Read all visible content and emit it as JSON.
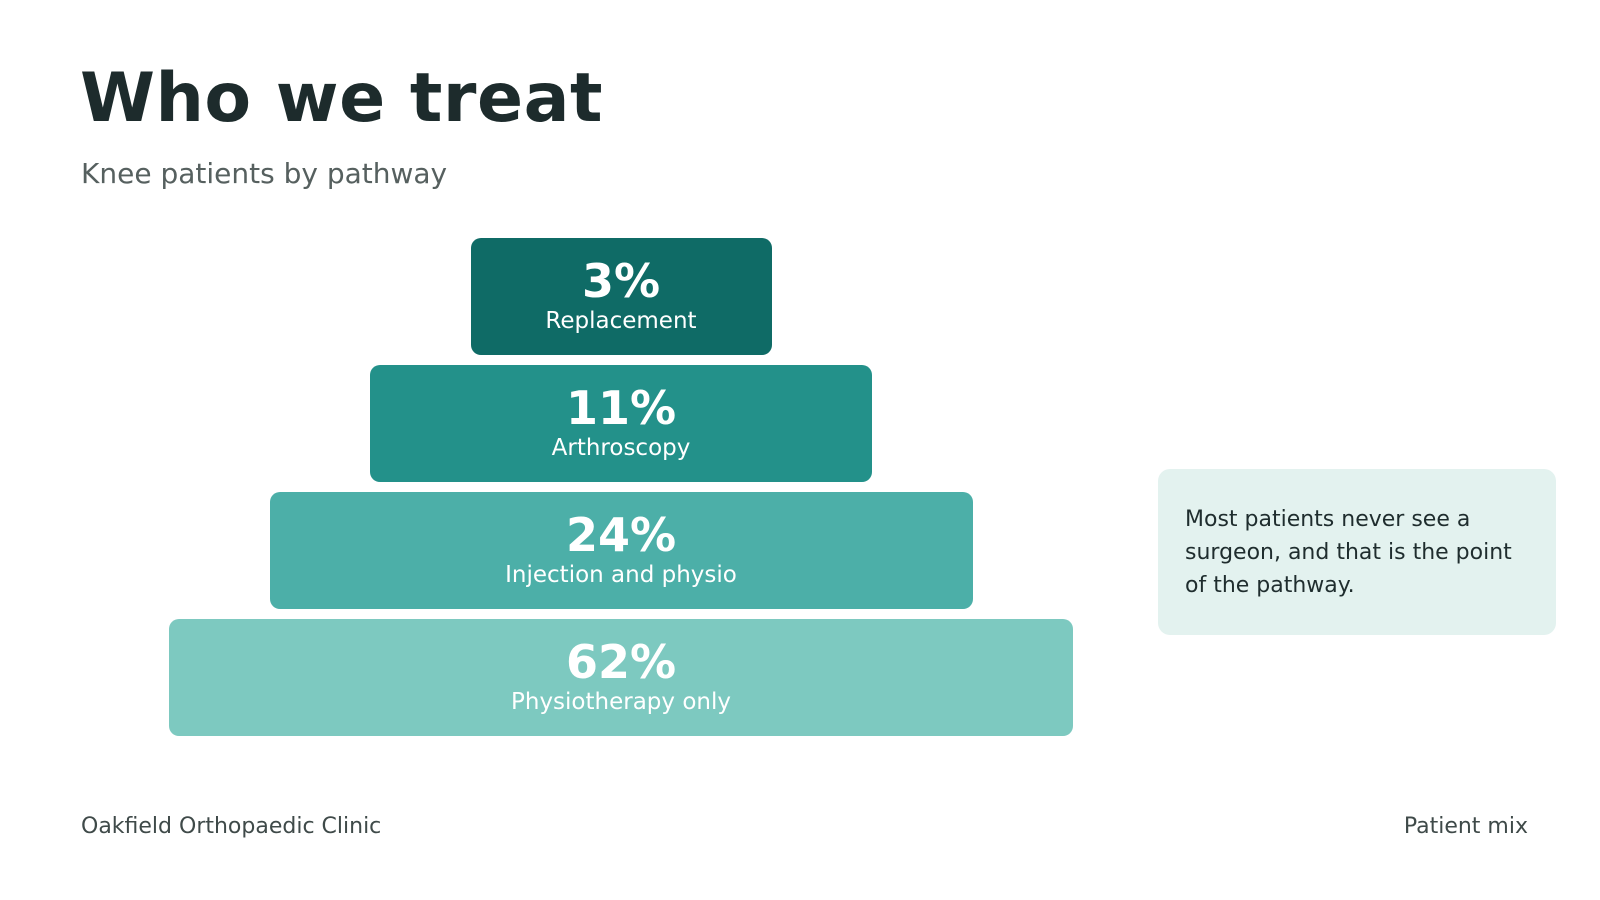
{
  "slide": {
    "title": "Who we treat",
    "subtitle": "Knee patients by pathway"
  },
  "chart_data": {
    "type": "pyramid",
    "unit": "%",
    "categories": [
      "Replacement",
      "Arthroscopy",
      "Injection and physio",
      "Physiotherapy only"
    ],
    "values": [
      3,
      11,
      24,
      62
    ],
    "value_labels": [
      "3%",
      "11%",
      "24%",
      "62%"
    ],
    "colors": [
      "#0f6b66",
      "#23918a",
      "#4cafa8",
      "#7dc9c0"
    ],
    "title": "Who we treat",
    "subtitle": "Knee patients by pathway",
    "order": "top-to-bottom"
  },
  "callout": {
    "text": "Most patients never see a surgeon, and that is the point of the pathway."
  },
  "footer": {
    "left": "Oakfield Orthopaedic Clinic",
    "right": "Patient mix"
  }
}
